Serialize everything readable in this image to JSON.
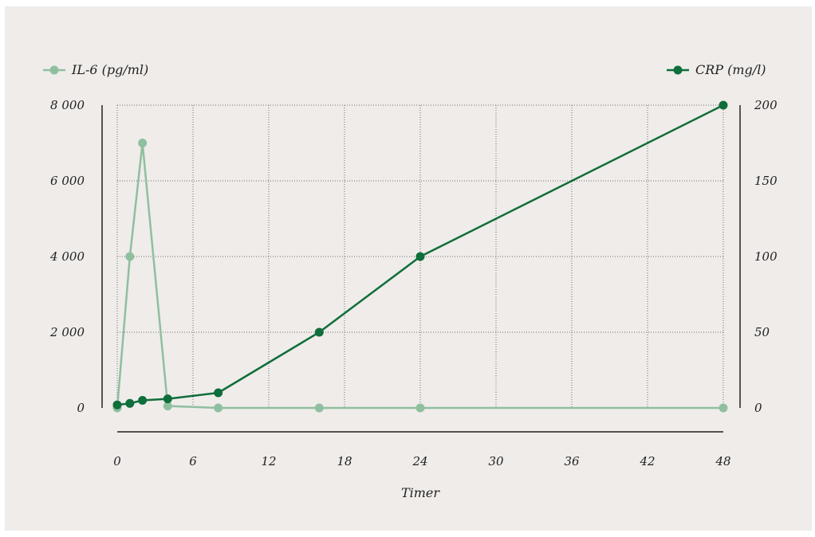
{
  "chart_data": {
    "type": "line",
    "title": "",
    "xlabel": "Timer",
    "x_ticks": [
      0,
      6,
      12,
      18,
      24,
      30,
      36,
      42,
      48
    ],
    "xlim": [
      0,
      48
    ],
    "y_left": {
      "lim": [
        0,
        8000
      ],
      "ticks": [
        0,
        2000,
        4000,
        6000,
        8000
      ],
      "tick_labels": [
        "0",
        "2 000",
        "4 000",
        "6 000",
        "8 000"
      ]
    },
    "y_right": {
      "lim": [
        0,
        200
      ],
      "ticks": [
        0,
        50,
        100,
        150,
        200
      ],
      "tick_labels": [
        "0",
        "50",
        "100",
        "150",
        "200"
      ]
    },
    "grid": true,
    "legend": [
      {
        "label": "IL-6 (pg/ml)",
        "position": "top-left"
      },
      {
        "label": "CRP (mg/l)",
        "position": "top-right"
      }
    ],
    "series": [
      {
        "name": "IL-6 (pg/ml)",
        "axis": "left",
        "color": "#8fbf9f",
        "x": [
          0,
          1,
          2,
          4,
          8,
          16,
          24,
          48
        ],
        "y": [
          0,
          4000,
          7000,
          50,
          0,
          0,
          0,
          0
        ]
      },
      {
        "name": "CRP (mg/l)",
        "axis": "right",
        "color": "#0f6e3b",
        "x": [
          0,
          1,
          2,
          4,
          8,
          16,
          24,
          48
        ],
        "y": [
          2,
          3,
          5,
          6,
          10,
          50,
          100,
          200
        ]
      }
    ]
  }
}
